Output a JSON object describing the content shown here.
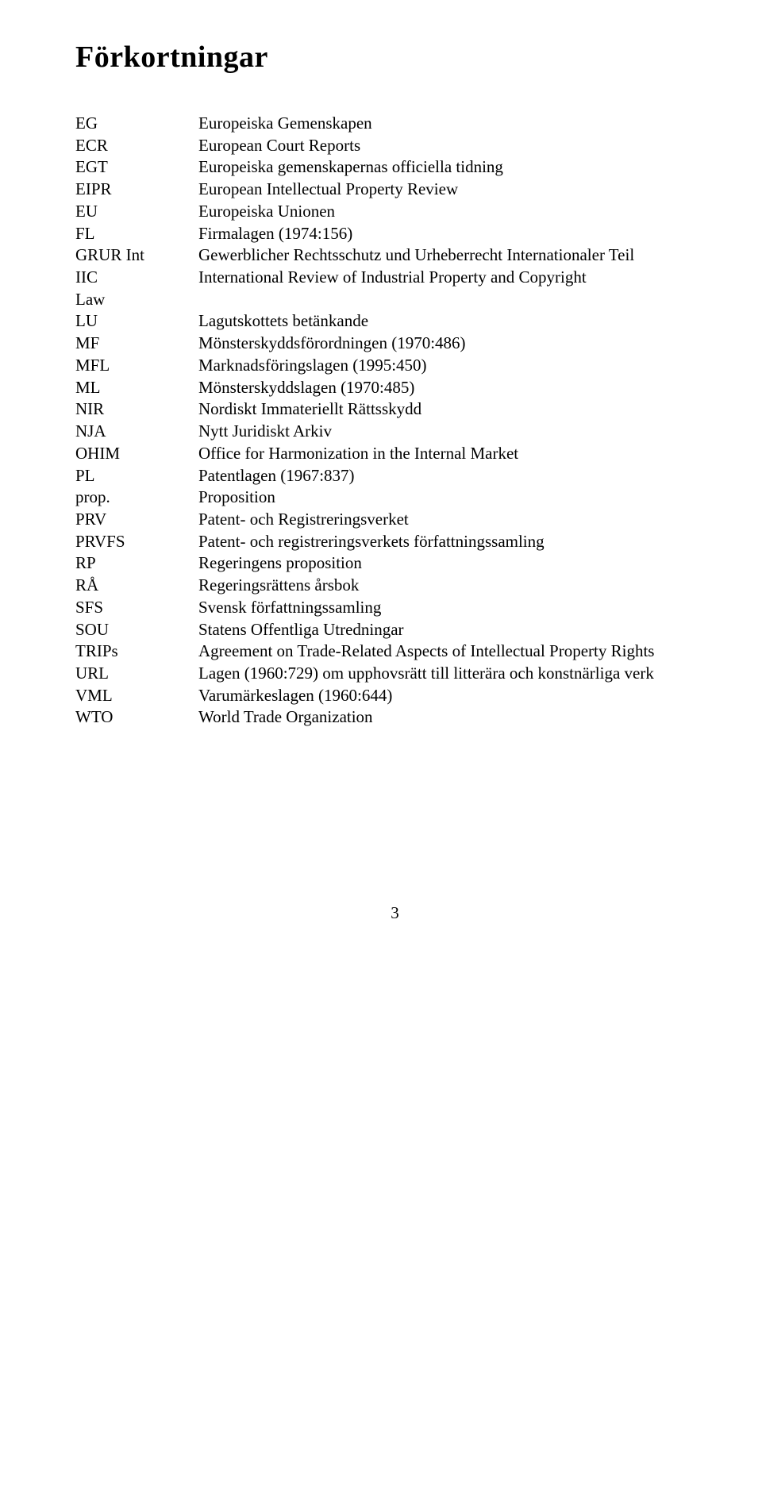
{
  "title": "Förkortningar",
  "pageNumber": "3",
  "rows": [
    {
      "abbr": "EG",
      "def": "Europeiska Gemenskapen"
    },
    {
      "abbr": "ECR",
      "def": "European Court Reports"
    },
    {
      "abbr": "EGT",
      "def": "Europeiska gemenskapernas officiella tidning"
    },
    {
      "abbr": "EIPR",
      "def": "European Intellectual Property Review"
    },
    {
      "abbr": "EU",
      "def": "Europeiska Unionen"
    },
    {
      "abbr": "FL",
      "def": "Firmalagen (1974:156)"
    },
    {
      "abbr": "GRUR Int",
      "def": "Gewerblicher Rechtsschutz und Urheberrecht Internationaler Teil"
    },
    {
      "abbr": "IIC",
      "def": "International Review of Industrial Property and Copyright"
    },
    {
      "abbr": "Law",
      "def": ""
    },
    {
      "abbr": "LU",
      "def": "Lagutskottets betänkande"
    },
    {
      "abbr": "MF",
      "def": "Mönsterskyddsförordningen (1970:486)"
    },
    {
      "abbr": "MFL",
      "def": "Marknadsföringslagen (1995:450)"
    },
    {
      "abbr": "ML",
      "def": "Mönsterskyddslagen (1970:485)"
    },
    {
      "abbr": "NIR",
      "def": "Nordiskt Immateriellt Rättsskydd"
    },
    {
      "abbr": "NJA",
      "def": "Nytt Juridiskt Arkiv"
    },
    {
      "abbr": "OHIM",
      "def": "Office for Harmonization in the Internal Market"
    },
    {
      "abbr": "PL",
      "def": "Patentlagen (1967:837)"
    },
    {
      "abbr": "prop.",
      "def": "Proposition"
    },
    {
      "abbr": "PRV",
      "def": "Patent- och Registreringsverket"
    },
    {
      "abbr": "PRVFS",
      "def": "Patent- och registreringsverkets författningssamling"
    },
    {
      "abbr": "RP",
      "def": "Regeringens proposition"
    },
    {
      "abbr": "RÅ",
      "def": "Regeringsrättens årsbok"
    },
    {
      "abbr": "SFS",
      "def": "Svensk författningssamling"
    },
    {
      "abbr": "SOU",
      "def": "Statens Offentliga Utredningar"
    },
    {
      "abbr": "TRIPs",
      "def": "Agreement on Trade-Related Aspects of Intellectual Property Rights"
    },
    {
      "abbr": "URL",
      "def": "Lagen (1960:729) om upphovsrätt till litterära och konstnärliga verk"
    },
    {
      "abbr": "VML",
      "def": "Varumärkeslagen (1960:644)"
    },
    {
      "abbr": "WTO",
      "def": "World Trade Organization"
    }
  ]
}
